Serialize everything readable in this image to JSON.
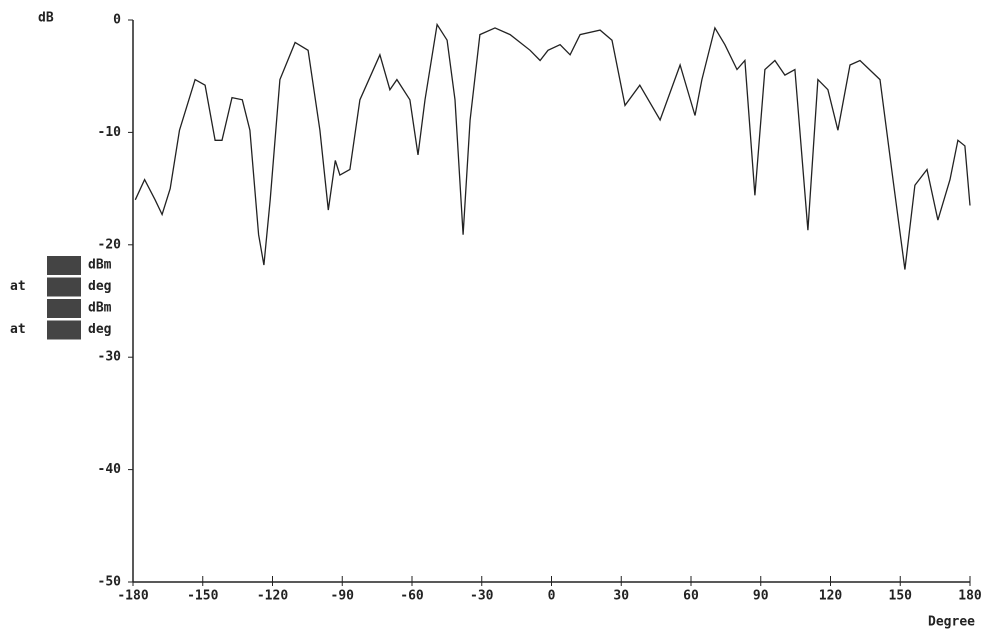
{
  "chart_data": {
    "type": "line",
    "y_label": "dB",
    "x_label": "Degree",
    "xlim": [
      -180,
      180
    ],
    "xticks": [
      -180,
      -150,
      -120,
      -90,
      -60,
      -30,
      0,
      30,
      60,
      90,
      120,
      150,
      180
    ],
    "ylim": [
      -50,
      0
    ],
    "yticks": [
      0,
      -10,
      -20,
      -30,
      -40,
      -50
    ],
    "readout": [
      {
        "unit": "dBm"
      },
      {
        "prefix": "at",
        "unit": "deg"
      },
      {
        "unit": "dBm"
      },
      {
        "prefix": "at",
        "unit": "deg"
      }
    ],
    "series": [
      {
        "color": "#222222",
        "x": [
          -179,
          -175,
          -170.5,
          -167.5,
          -164,
          -160,
          -153.3,
          -149,
          -144.7,
          -141.7,
          -137.4,
          -133,
          -129.7,
          -126,
          -123.7,
          -121,
          -116.8,
          -110.3,
          -104.7,
          -99.6,
          -96,
          -93,
          -91,
          -86.7,
          -82.4,
          -73.8,
          -69.5,
          -66.5,
          -60.9,
          -57.4,
          -54.4,
          -49.2,
          -44.9,
          -41.5,
          -38,
          -35,
          -30.8,
          -24.3,
          -17.8,
          -9.2,
          -4.9,
          -1.5,
          3.7,
          8,
          12.3,
          20.9,
          26,
          31.6,
          38,
          46.7,
          55.3,
          61.7,
          64.7,
          70.3,
          74.6,
          79.8,
          83.2,
          87.5,
          91.8,
          96.1,
          100.4,
          104.7,
          110.3,
          114.6,
          118.9,
          123.2,
          128.4,
          132.7,
          141.3,
          146.9,
          152,
          156.3,
          161.5,
          166.2,
          171.4,
          174.8,
          177.8,
          180
        ],
        "values": [
          -16,
          -14.2,
          -16,
          -17.3,
          -15,
          -9.8,
          -5.3,
          -5.8,
          -10.7,
          -10.7,
          -6.9,
          -7.1,
          -9.8,
          -19.1,
          -21.8,
          -16,
          -5.3,
          -2,
          -2.7,
          -9.8,
          -16.9,
          -12.5,
          -13.8,
          -13.3,
          -7.1,
          -3.1,
          -6.2,
          -5.3,
          -7.1,
          -12,
          -7.1,
          -0.4,
          -1.8,
          -7.1,
          -19.1,
          -8.9,
          -1.3,
          -0.7,
          -1.3,
          -2.7,
          -3.6,
          -2.7,
          -2.2,
          -3.1,
          -1.3,
          -0.9,
          -1.8,
          -7.6,
          -5.8,
          -8.9,
          -4,
          -8.5,
          -5.3,
          -0.7,
          -2.2,
          -4.4,
          -3.6,
          -15.6,
          -4.4,
          -3.6,
          -4.9,
          -4.4,
          -18.7,
          -5.3,
          -6.2,
          -9.8,
          -4,
          -3.6,
          -5.3,
          -14.2,
          -22.2,
          -14.7,
          -13.3,
          -17.8,
          -14.2,
          -10.7,
          -11.2,
          -16.5
        ]
      }
    ]
  }
}
